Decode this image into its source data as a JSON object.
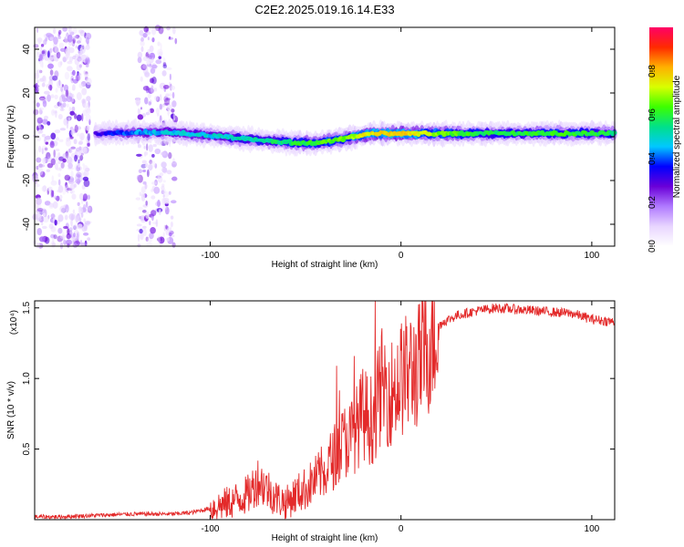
{
  "title": "C2E2.2025.019.16.14.E33",
  "colors": {
    "snr_line": "#e32a2a",
    "colormap": [
      "#ffffff",
      "#e8d5ff",
      "#b07aff",
      "#6a00d8",
      "#0000ff",
      "#00c8ff",
      "#00e08a",
      "#3cff00",
      "#d8ff00",
      "#ffb000",
      "#ff2a00",
      "#ff0066"
    ]
  },
  "chart_data": [
    {
      "type": "heatmap",
      "name": "spectrogram",
      "xlabel": "Height of straight line (km)",
      "ylabel": "Frequency (Hz)",
      "xlim": [
        -192,
        112
      ],
      "ylim": [
        -50,
        50
      ],
      "xticks": [
        -100,
        0,
        100
      ],
      "xtick_labels": [
        "-100",
        "0",
        "100"
      ],
      "yticks": [
        -40,
        -20,
        0,
        20,
        40
      ],
      "ytick_labels": [
        "-40",
        "-20",
        "0",
        "20",
        "40"
      ],
      "colorbar": {
        "label": "Normalized spectral amplitude",
        "range": [
          0.0,
          1.0
        ],
        "ticks": [
          0.0,
          0.2,
          0.4,
          0.6,
          0.8
        ],
        "tick_labels": [
          "0.0",
          "0.2",
          "0.4",
          "0.6",
          "0.8"
        ]
      },
      "ridge": {
        "description_points_x": [
          -160,
          -140,
          -120,
          -100,
          -80,
          -60,
          -45,
          -30,
          -15,
          0,
          20,
          50,
          80,
          112
        ],
        "frequency_hz": [
          1.5,
          2,
          2,
          0.5,
          -1,
          -2.5,
          -3,
          -1,
          1.5,
          1.5,
          1.5,
          1.5,
          1.5,
          1.5
        ],
        "amplitude": [
          0.3,
          0.45,
          0.5,
          0.5,
          0.55,
          0.6,
          0.65,
          0.7,
          0.8,
          0.85,
          0.7,
          0.6,
          0.65,
          0.6
        ]
      },
      "noise_bands_x": [
        [
          -192,
          -163
        ],
        [
          -138,
          -118
        ]
      ]
    },
    {
      "type": "line",
      "name": "snr",
      "xlabel": "Height of straight line (km)",
      "ylabel": "SNR (10 * v/v)",
      "y_multiplier_label": "(x10⁴)",
      "xlim": [
        -192,
        112
      ],
      "ylim": [
        0,
        1.55
      ],
      "xticks": [
        -100,
        0,
        100
      ],
      "xtick_labels": [
        "-100",
        "0",
        "100"
      ],
      "yticks": [
        0.5,
        1.0,
        1.5
      ],
      "ytick_labels": [
        "0.5",
        "1.0",
        "1.5"
      ],
      "x": [
        -192,
        -180,
        -160,
        -140,
        -120,
        -110,
        -100,
        -90,
        -80,
        -75,
        -70,
        -65,
        -60,
        -55,
        -50,
        -45,
        -40,
        -35,
        -30,
        -25,
        -20,
        -15,
        -10,
        -5,
        0,
        5,
        10,
        15,
        18,
        22,
        30,
        40,
        50,
        60,
        70,
        80,
        90,
        100,
        112
      ],
      "y": [
        0.02,
        0.02,
        0.03,
        0.04,
        0.04,
        0.05,
        0.08,
        0.12,
        0.18,
        0.28,
        0.22,
        0.15,
        0.12,
        0.18,
        0.22,
        0.28,
        0.35,
        0.45,
        0.55,
        0.6,
        0.75,
        0.7,
        0.95,
        0.9,
        1.0,
        1.05,
        1.1,
        1.25,
        1.35,
        1.4,
        1.45,
        1.48,
        1.5,
        1.49,
        1.48,
        1.47,
        1.46,
        1.42,
        1.4
      ]
    }
  ]
}
